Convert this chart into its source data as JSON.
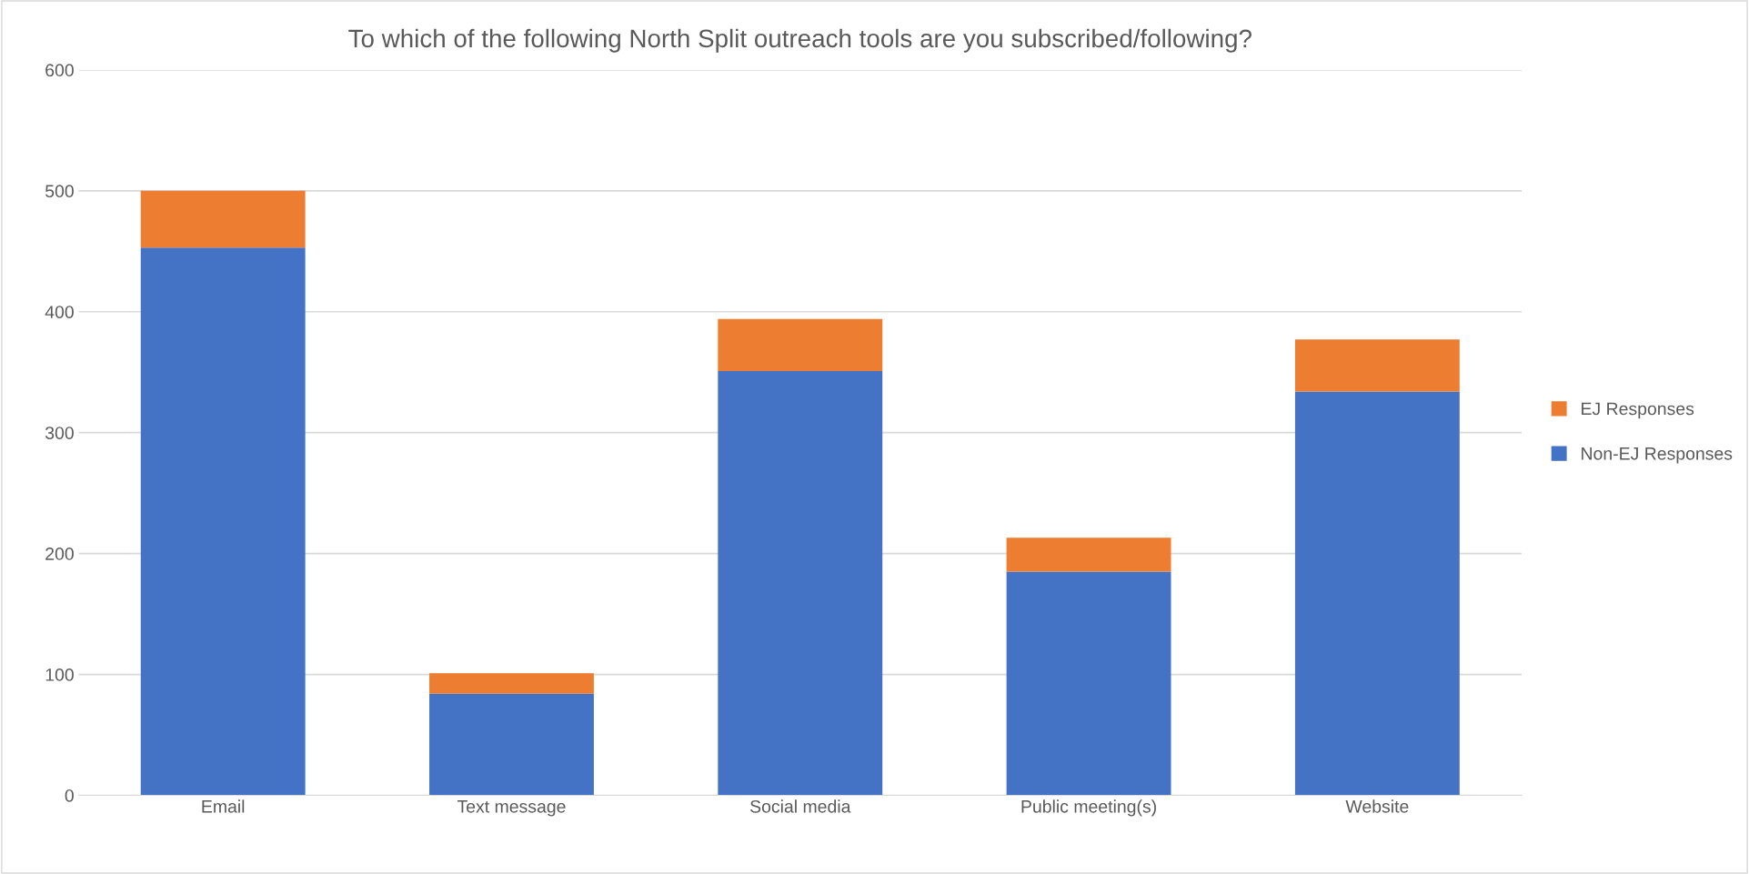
{
  "chart_data": {
    "type": "bar",
    "title": "To which of the following North Split outreach tools are you subscribed/following?",
    "categories": [
      "Email",
      "Text message",
      "Social media",
      "Public meeting(s)",
      "Website"
    ],
    "stacked": true,
    "series": [
      {
        "name": "Non-EJ Responses",
        "color": "#4472c4",
        "values": [
          453,
          84,
          351,
          185,
          334
        ]
      },
      {
        "name": "EJ Responses",
        "color": "#ed7d31",
        "values": [
          47,
          17,
          43,
          28,
          43
        ]
      }
    ],
    "ylim": [
      0,
      600
    ],
    "yticks": [
      0,
      100,
      200,
      300,
      400,
      500,
      600
    ],
    "grid": "y",
    "legend": "right"
  }
}
